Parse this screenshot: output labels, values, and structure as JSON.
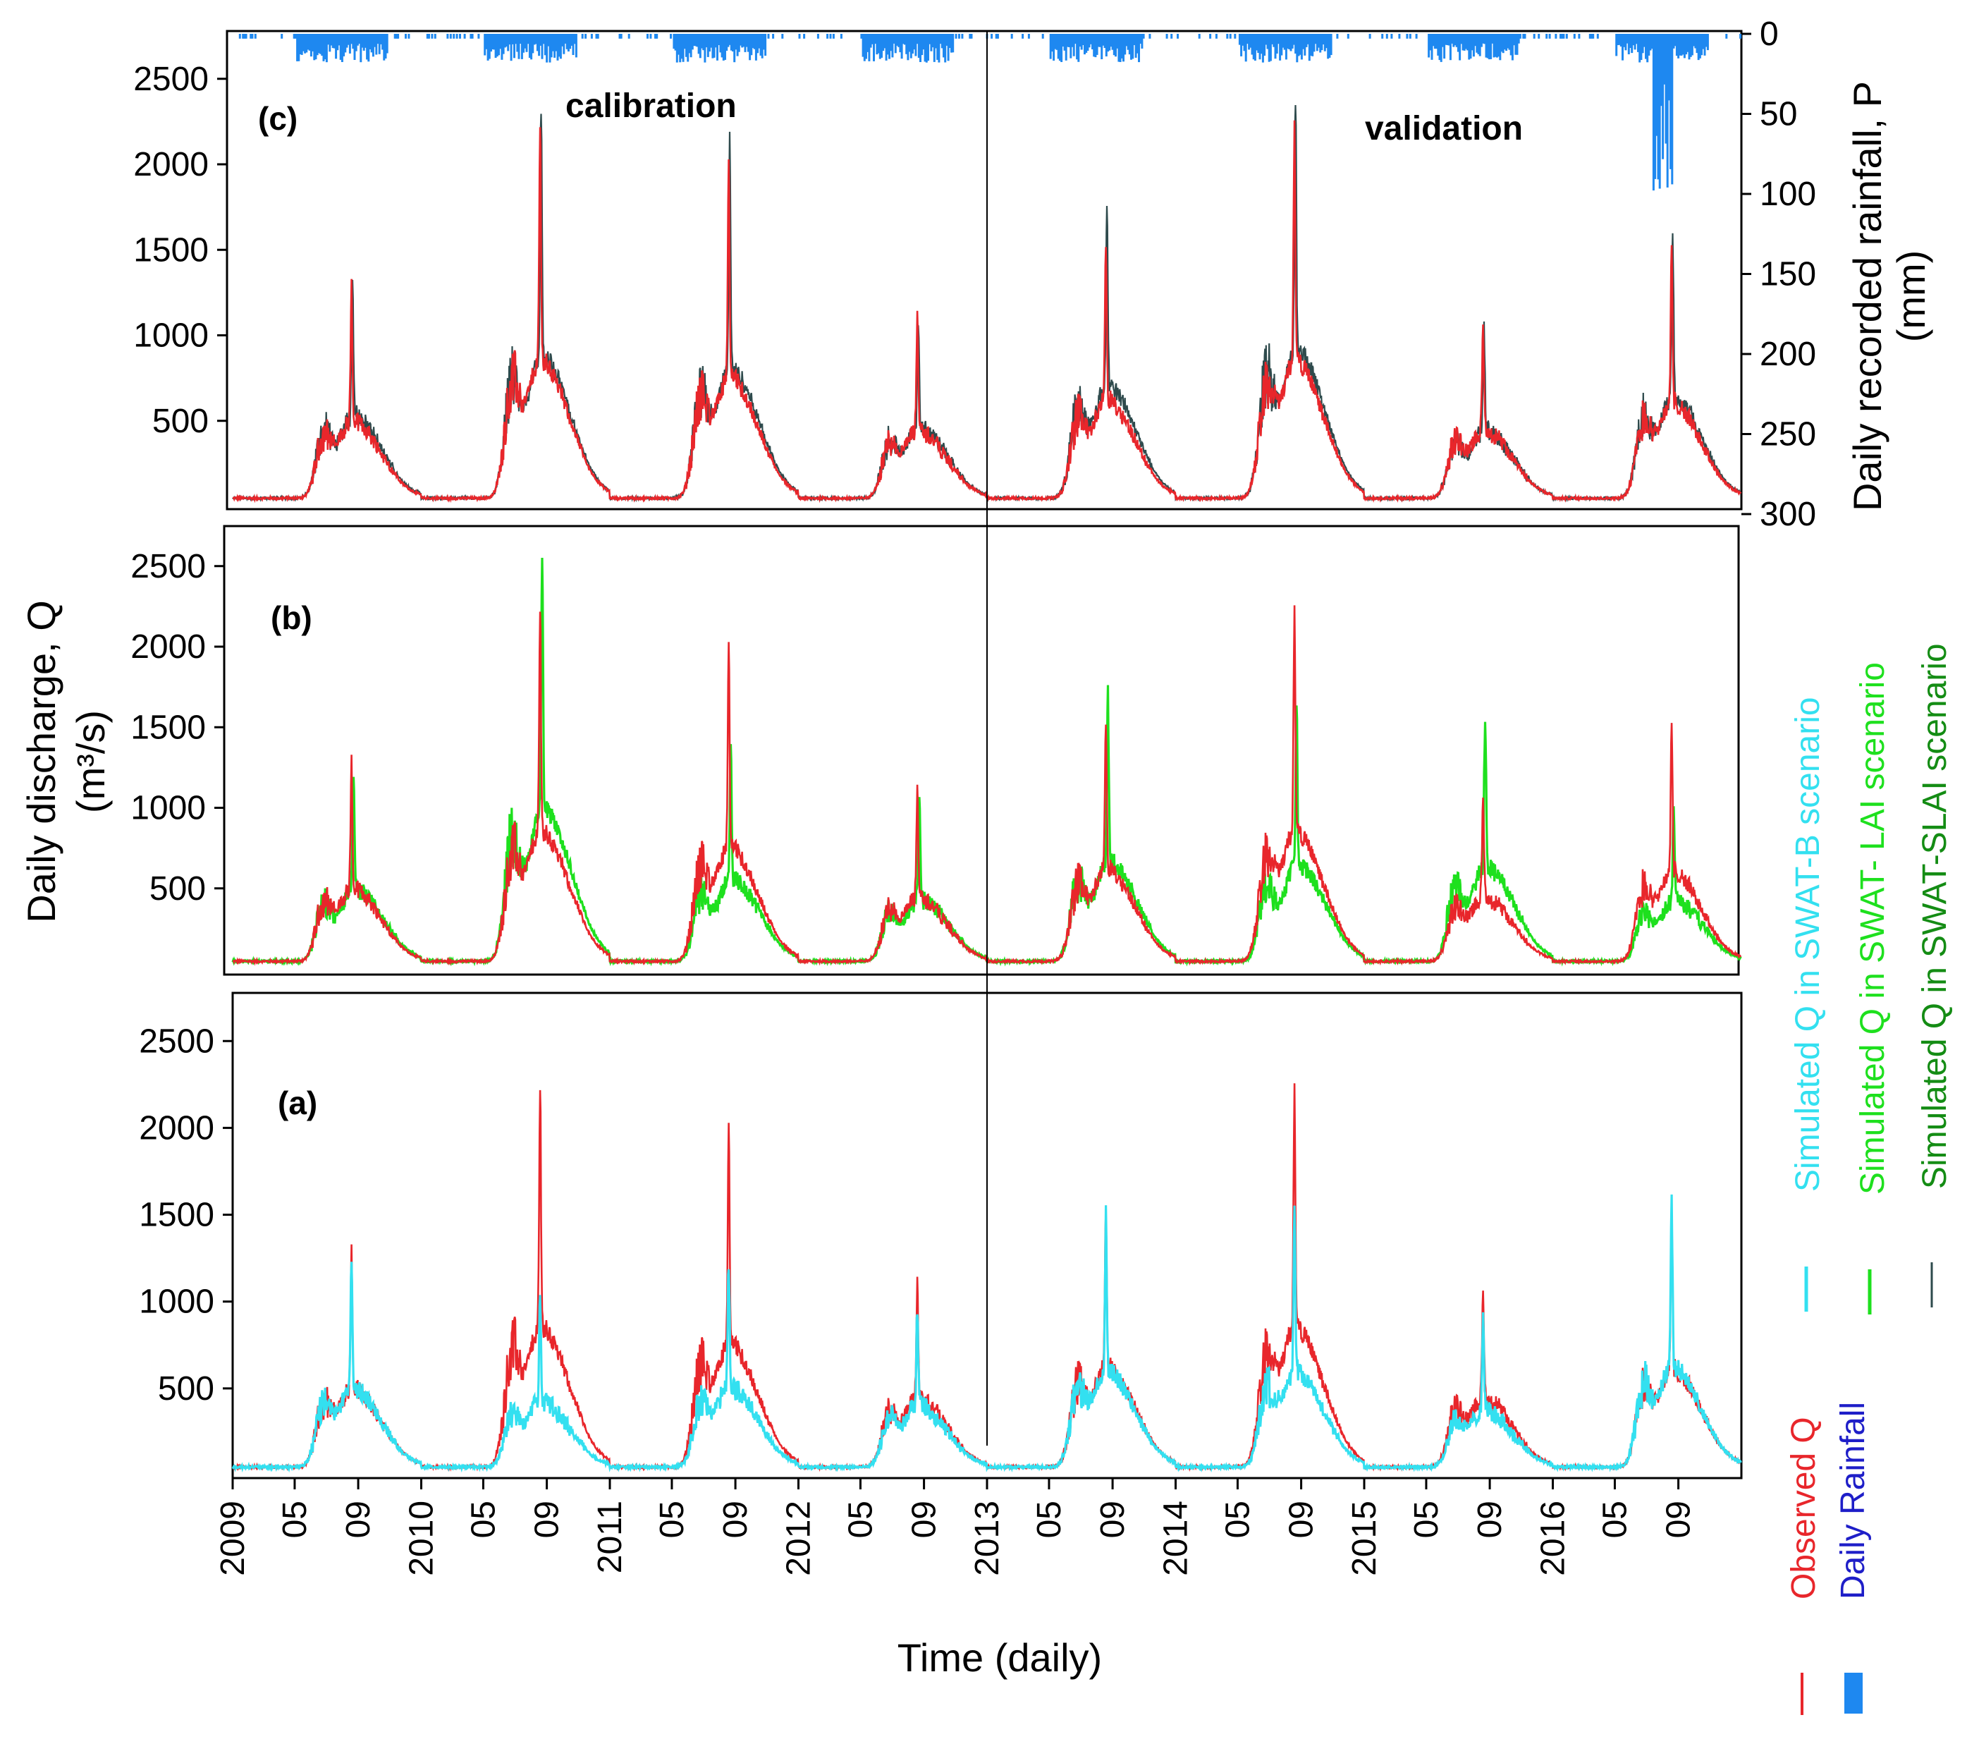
{
  "chart_data": {
    "type": "line",
    "x_axis": {
      "title": "Time (daily)",
      "ticks": [
        "2009",
        "05",
        "09",
        "2010",
        "05",
        "09",
        "2011",
        "05",
        "09",
        "2012",
        "05",
        "09",
        "2013",
        "05",
        "09",
        "2014",
        "05",
        "09",
        "2015",
        "05",
        "09",
        "2016",
        "05",
        "09"
      ]
    },
    "y_left": {
      "title_line1": "Daily discharge, Q",
      "title_line2": "(m³/s)",
      "ticks": [
        "500",
        "1000",
        "1500",
        "2000",
        "2500"
      ],
      "range": [
        0,
        2800
      ]
    },
    "y_right": {
      "title_line1": "Daily recorded rainfall, P",
      "title_line2": "(mm)",
      "ticks": [
        "0",
        "50",
        "100",
        "150",
        "200",
        "250",
        "300"
      ],
      "range": [
        0,
        300
      ]
    },
    "annotations": {
      "calibration": "calibration",
      "validation": "validation",
      "split_year": "2013"
    },
    "panels": [
      {
        "tag": "(c)",
        "series": [
          "Observed Q",
          "Simulated Q in SWAT-SLAI scenario"
        ]
      },
      {
        "tag": "(b)",
        "series": [
          "Observed Q",
          "Simulated Q in SWAT- LAI scenario"
        ]
      },
      {
        "tag": "(a)",
        "series": [
          "Observed Q",
          "Simulated Q in SWAT-B scenario"
        ]
      }
    ],
    "annual_peaks": {
      "years": [
        2009,
        2010,
        2011,
        2012,
        2013,
        2014,
        2015,
        2016
      ],
      "observed": [
        1230,
        2230,
        1950,
        1070,
        1580,
        2240,
        1080,
        1540
      ],
      "swat_b": [
        1230,
        1010,
        1250,
        950,
        1500,
        1500,
        870,
        1560
      ],
      "swat_lai": [
        1230,
        2640,
        1400,
        1030,
        1710,
        1640,
        1620,
        1010
      ],
      "swat_slai": [
        1320,
        2320,
        2110,
        1120,
        1820,
        2420,
        1060,
        1640
      ]
    },
    "rainfall_peak_mm": 103,
    "legend": [
      {
        "name": "Observed Q",
        "color": "#e8262b",
        "style": "line"
      },
      {
        "name": "Daily Rainfall",
        "color": "#1e88f0",
        "style": "bar"
      },
      {
        "name": "Simulated Q in SWAT-B scenario",
        "color": "#33e0f0",
        "style": "line"
      },
      {
        "name": "Simulated Q in SWAT- LAI scenario",
        "color": "#1ee01e",
        "style": "line"
      },
      {
        "name": "Simulated Q in SWAT-SLAI scenario",
        "color": "#2e4a4c",
        "style": "line"
      }
    ]
  }
}
